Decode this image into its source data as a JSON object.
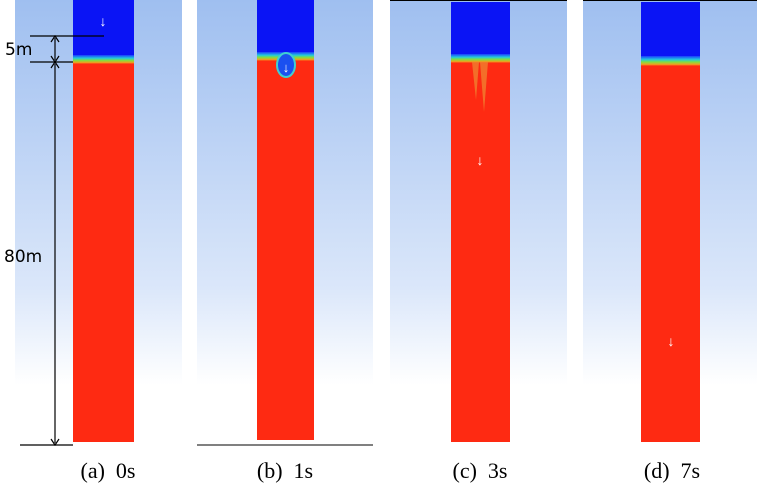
{
  "annotations": {
    "top_height": "5m",
    "main_height": "80m"
  },
  "panels": [
    {
      "label": "(a)  0s"
    },
    {
      "label": "(b)  1s"
    },
    {
      "label": "(c)  3s"
    },
    {
      "label": "(d)  7s"
    }
  ]
}
